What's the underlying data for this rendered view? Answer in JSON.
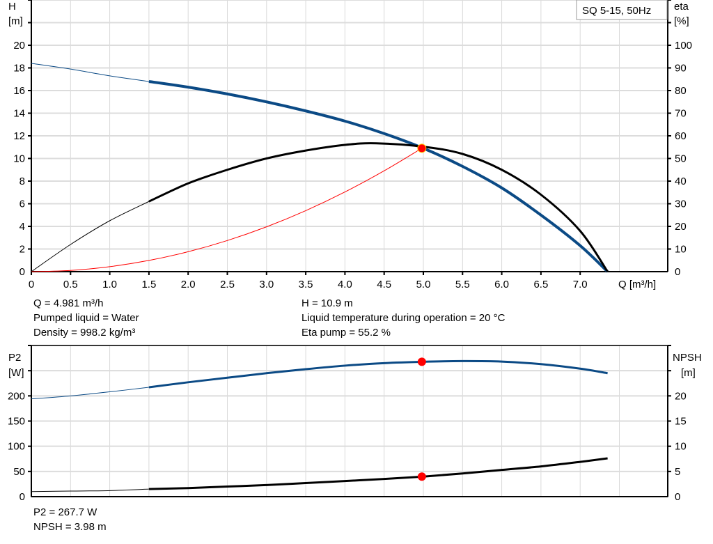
{
  "chart_data": [
    {
      "type": "line",
      "title": "SQ 5-15, 50Hz",
      "xlabel": "Q [m³/h]",
      "ylabel_left": [
        "H",
        "[m]"
      ],
      "ylabel_right": [
        "eta",
        "[%]"
      ],
      "xlim": [
        0,
        7.85
      ],
      "ylim_left": [
        0,
        24
      ],
      "ylim_right": [
        0,
        120
      ],
      "grid": true,
      "x_ticks": [
        "0",
        "0.5",
        "1.0",
        "1.5",
        "2.0",
        "2.5",
        "3.0",
        "3.5",
        "4.0",
        "4.5",
        "5.0",
        "5.5",
        "6.0",
        "6.5",
        "7.0"
      ],
      "y_left_ticks": [
        "0",
        "2",
        "4",
        "6",
        "8",
        "10",
        "12",
        "14",
        "16",
        "18",
        "20"
      ],
      "y_right_ticks": [
        "0",
        "10",
        "20",
        "30",
        "40",
        "50",
        "60",
        "70",
        "80",
        "90",
        "100"
      ],
      "series": [
        {
          "axis": "left",
          "color": "#0b4a85",
          "x": [
            0,
            0.5,
            1.0,
            1.5,
            2.0,
            2.5,
            3.0,
            3.5,
            4.0,
            4.5,
            5.0,
            5.5,
            6.0,
            6.5,
            7.0,
            7.35
          ],
          "y": [
            18.4,
            17.9,
            17.3,
            16.8,
            16.3,
            15.7,
            15.0,
            14.2,
            13.3,
            12.2,
            10.9,
            9.3,
            7.4,
            5.0,
            2.3,
            0
          ],
          "thin_below": 1.5
        },
        {
          "axis": "right",
          "color": "#000000",
          "x": [
            0,
            0.5,
            1.0,
            1.5,
            2.0,
            2.5,
            3.0,
            3.5,
            4.0,
            4.4,
            5.0,
            5.5,
            6.0,
            6.5,
            7.0,
            7.35
          ],
          "y": [
            0,
            12,
            22.5,
            31,
            39,
            45,
            50,
            53.5,
            56,
            56.7,
            55.2,
            52,
            45,
            34,
            18,
            0
          ],
          "thin_below": 1.5
        },
        {
          "axis": "left",
          "color": "#ff0000",
          "x": [
            0,
            0.5,
            1.0,
            1.5,
            2.0,
            2.5,
            3.0,
            3.5,
            4.0,
            4.5,
            4.98
          ],
          "y": [
            0,
            0.11,
            0.44,
            0.99,
            1.76,
            2.75,
            3.96,
            5.39,
            7.04,
            8.91,
            10.9
          ],
          "thin_below": 99
        }
      ],
      "operating_point": {
        "x": 4.981,
        "y": 10.9,
        "color": "#ff0000"
      }
    },
    {
      "type": "line",
      "ylabel_left": [
        "P2",
        "[W]"
      ],
      "ylabel_right": [
        "NPSH",
        "[m]"
      ],
      "xlim": [
        0,
        7.85
      ],
      "ylim_left": [
        0,
        300
      ],
      "ylim_right": [
        0,
        30
      ],
      "grid": true,
      "y_left_ticks": [
        "0",
        "50",
        "100",
        "150",
        "200"
      ],
      "y_right_ticks": [
        "0",
        "5",
        "10",
        "15",
        "20"
      ],
      "series": [
        {
          "axis": "left",
          "color": "#0b4a85",
          "x": [
            0,
            0.5,
            1.0,
            1.5,
            2.0,
            2.5,
            3.0,
            3.5,
            4.0,
            4.5,
            5.0,
            5.5,
            6.0,
            6.5,
            7.0,
            7.35
          ],
          "y": [
            194,
            200,
            208,
            217,
            227,
            236,
            245,
            253,
            260,
            265,
            267.7,
            269,
            268,
            263,
            254,
            245
          ],
          "thin_below": 1.5
        },
        {
          "axis": "right",
          "color": "#000000",
          "x": [
            0,
            0.5,
            1.0,
            1.5,
            2.0,
            2.5,
            3.0,
            3.5,
            4.0,
            4.5,
            5.0,
            5.5,
            6.0,
            6.5,
            7.0,
            7.35
          ],
          "y": [
            1.0,
            1.1,
            1.2,
            1.5,
            1.7,
            2.0,
            2.3,
            2.7,
            3.1,
            3.5,
            3.98,
            4.6,
            5.3,
            6.0,
            6.9,
            7.6
          ],
          "thin_below": 1.5
        }
      ],
      "operating_points": [
        {
          "axis": "left",
          "x": 4.981,
          "y": 267.7
        },
        {
          "axis": "right",
          "x": 4.981,
          "y": 3.98
        }
      ]
    }
  ],
  "readouts": {
    "q": "Q = 4.981 m³/h",
    "liquid": "Pumped liquid = Water",
    "density": "Density = 998.2 kg/m³",
    "h": "H = 10.9 m",
    "temp": "Liquid temperature during operation = 20 °C",
    "eta": "Eta pump = 55.2 %",
    "p2": "P2 = 267.7 W",
    "npsh": "NPSH = 3.98 m"
  }
}
